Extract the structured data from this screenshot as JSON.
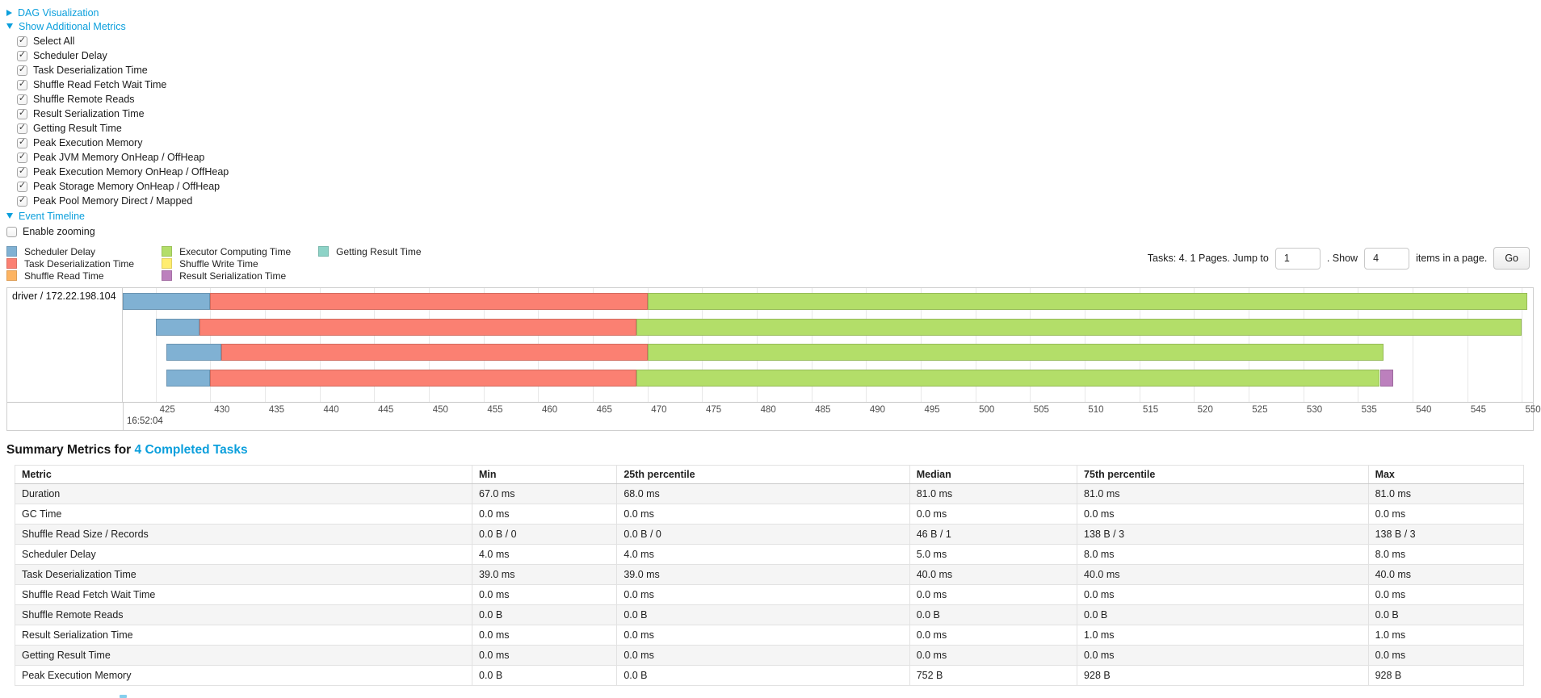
{
  "toggles": {
    "dag_label": "DAG Visualization",
    "metrics_label": "Show Additional Metrics",
    "timeline_label": "Event Timeline",
    "enable_zooming_label": "Enable zooming"
  },
  "metrics_checkboxes": [
    "Select All",
    "Scheduler Delay",
    "Task Deserialization Time",
    "Shuffle Read Fetch Wait Time",
    "Shuffle Remote Reads",
    "Result Serialization Time",
    "Getting Result Time",
    "Peak Execution Memory",
    "Peak JVM Memory OnHeap / OffHeap",
    "Peak Execution Memory OnHeap / OffHeap",
    "Peak Storage Memory OnHeap / OffHeap",
    "Peak Pool Memory Direct / Mapped"
  ],
  "legend": {
    "columns": [
      [
        {
          "label": "Scheduler Delay",
          "color": "#80B1D3"
        },
        {
          "label": "Task Deserialization Time",
          "color": "#FB8072"
        },
        {
          "label": "Shuffle Read Time",
          "color": "#FDB462"
        }
      ],
      [
        {
          "label": "Executor Computing Time",
          "color": "#B3DE69"
        },
        {
          "label": "Shuffle Write Time",
          "color": "#FFED6F"
        },
        {
          "label": "Result Serialization Time",
          "color": "#BC80BD"
        }
      ],
      [
        {
          "label": "Getting Result Time",
          "color": "#8DD3C7"
        }
      ]
    ]
  },
  "pagination": {
    "info_text": "Tasks: 4. 1 Pages. Jump to",
    "jump_value": "1",
    "show_label": ". Show",
    "show_value": "4",
    "items_suffix": "items in a page.",
    "go_label": "Go"
  },
  "chart_data": {
    "type": "bar",
    "subtype": "task-event-timeline-gantt",
    "group_label": "driver / 172.22.198.104",
    "time_axis": {
      "major_label": "16:52:04",
      "tick_start_ms": 425,
      "tick_end_ms": 550,
      "tick_step_ms": 5,
      "domain_ms": [
        422,
        551
      ],
      "units": "ms after 16:52:04"
    },
    "series_colors": {
      "scheduler_delay": "#80B1D3",
      "task_deserialization": "#FB8072",
      "shuffle_read": "#FDB462",
      "executor_computing": "#B3DE69",
      "shuffle_write": "#FFED6F",
      "result_serialization": "#BC80BD",
      "getting_result": "#8DD3C7"
    },
    "tasks": [
      {
        "segments": [
          {
            "kind": "scheduler_delay",
            "start": 422,
            "end": 430
          },
          {
            "kind": "task_deserialization",
            "start": 430,
            "end": 470
          },
          {
            "kind": "executor_computing",
            "start": 470,
            "end": 550.5
          }
        ]
      },
      {
        "segments": [
          {
            "kind": "scheduler_delay",
            "start": 425,
            "end": 429
          },
          {
            "kind": "task_deserialization",
            "start": 429,
            "end": 469
          },
          {
            "kind": "executor_computing",
            "start": 469,
            "end": 550
          }
        ]
      },
      {
        "segments": [
          {
            "kind": "scheduler_delay",
            "start": 426,
            "end": 431
          },
          {
            "kind": "task_deserialization",
            "start": 431,
            "end": 470
          },
          {
            "kind": "executor_computing",
            "start": 470,
            "end": 537.3
          }
        ]
      },
      {
        "segments": [
          {
            "kind": "scheduler_delay",
            "start": 426,
            "end": 430
          },
          {
            "kind": "task_deserialization",
            "start": 430,
            "end": 469
          },
          {
            "kind": "executor_computing",
            "start": 469,
            "end": 537
          },
          {
            "kind": "result_serialization",
            "start": 537,
            "end": 538.2
          }
        ]
      }
    ]
  },
  "summary": {
    "heading_prefix": "Summary Metrics for",
    "heading_link": "4 Completed Tasks",
    "columns": [
      "Metric",
      "Min",
      "25th percentile",
      "Median",
      "75th percentile",
      "Max"
    ],
    "rows": [
      [
        "Duration",
        "67.0 ms",
        "68.0 ms",
        "81.0 ms",
        "81.0 ms",
        "81.0 ms"
      ],
      [
        "GC Time",
        "0.0 ms",
        "0.0 ms",
        "0.0 ms",
        "0.0 ms",
        "0.0 ms"
      ],
      [
        "Shuffle Read Size / Records",
        "0.0 B / 0",
        "0.0 B / 0",
        "46 B / 1",
        "138 B / 3",
        "138 B / 3"
      ],
      [
        "Scheduler Delay",
        "4.0 ms",
        "4.0 ms",
        "5.0 ms",
        "8.0 ms",
        "8.0 ms"
      ],
      [
        "Task Deserialization Time",
        "39.0 ms",
        "39.0 ms",
        "40.0 ms",
        "40.0 ms",
        "40.0 ms"
      ],
      [
        "Shuffle Read Fetch Wait Time",
        "0.0 ms",
        "0.0 ms",
        "0.0 ms",
        "0.0 ms",
        "0.0 ms"
      ],
      [
        "Shuffle Remote Reads",
        "0.0 B",
        "0.0 B",
        "0.0 B",
        "0.0 B",
        "0.0 B"
      ],
      [
        "Result Serialization Time",
        "0.0 ms",
        "0.0 ms",
        "0.0 ms",
        "1.0 ms",
        "1.0 ms"
      ],
      [
        "Getting Result Time",
        "0.0 ms",
        "0.0 ms",
        "0.0 ms",
        "0.0 ms",
        "0.0 ms"
      ],
      [
        "Peak Execution Memory",
        "0.0 B",
        "0.0 B",
        "752 B",
        "928 B",
        "928 B"
      ]
    ]
  },
  "colors": {
    "link": "#0b9fdc",
    "table_stripe": "#f5f5f5",
    "grid": "#e8e8e8"
  }
}
